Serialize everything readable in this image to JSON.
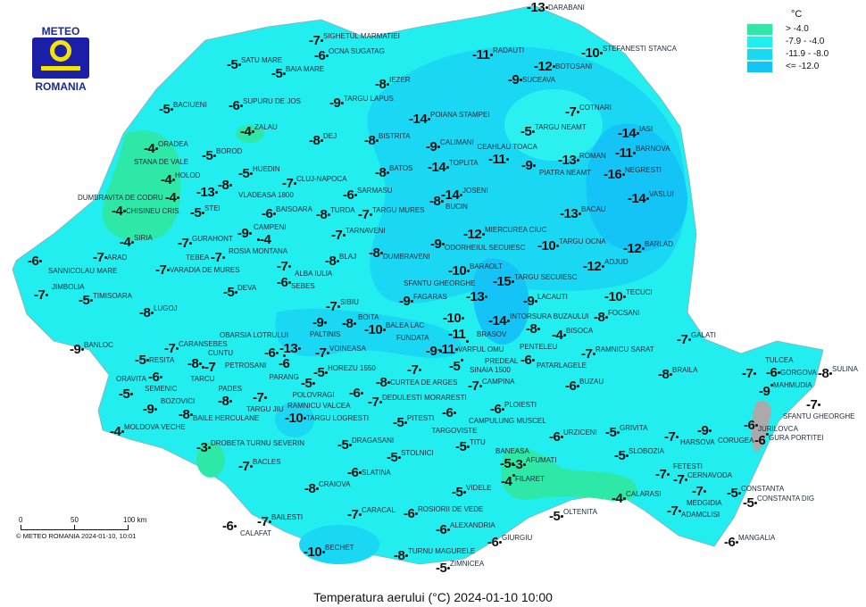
{
  "logo": {
    "line1": "METEO",
    "line2": "ROMANIA"
  },
  "legend": {
    "unit": "°C",
    "items": [
      {
        "label": "> -4.0",
        "color": "#2ee8a8"
      },
      {
        "label": "-7.9 - -4.0",
        "color": "#22eef0"
      },
      {
        "label": "-11.9 - -8.0",
        "color": "#1ad8f4"
      },
      {
        "label": "<= -12.0",
        "color": "#14c4f6"
      }
    ]
  },
  "scale": {
    "t0": "0",
    "t50": "50",
    "t100": "100 km",
    "copyright": "© METEO ROMANIA 2024-01-10, 10:01"
  },
  "title": "Temperatura aerului (°C) 2024-01-10 10:00",
  "stations": [
    {
      "name": "SIGHETUL MARMATIEI",
      "value": "-7"
    },
    {
      "name": "OCNA SUGATAG",
      "value": "-6"
    },
    {
      "name": "SATU MARE",
      "value": "-5"
    },
    {
      "name": "BAIA MARE",
      "value": "-5"
    },
    {
      "name": "SUPURU DE JOS",
      "value": "-6"
    },
    {
      "name": "BACIUENI",
      "value": "-5"
    },
    {
      "name": "TARGU LAPUS",
      "value": "-9"
    },
    {
      "name": "IEZER",
      "value": "-8"
    },
    {
      "name": "RADAUTI",
      "value": "-11"
    },
    {
      "name": "DARABANI",
      "value": "-13"
    },
    {
      "name": "STEFANESTI STANCA",
      "value": "-10"
    },
    {
      "name": "BOTOSANI",
      "value": "-12"
    },
    {
      "name": "SUCEAVA",
      "value": "-9"
    },
    {
      "name": "POIANA STAMPEI",
      "value": "-14"
    },
    {
      "name": "COTNARI",
      "value": "-7"
    },
    {
      "name": "TARGU NEAMT",
      "value": "-5"
    },
    {
      "name": "IASI",
      "value": "-14"
    },
    {
      "name": "ORADEA",
      "value": "-4"
    },
    {
      "name": "ZALAU",
      "value": "-4"
    },
    {
      "name": "DEJ",
      "value": "-8"
    },
    {
      "name": "BISTRITA",
      "value": "-8"
    },
    {
      "name": "CALIMANI",
      "value": "-9"
    },
    {
      "name": "BARNOVA",
      "value": "-11"
    },
    {
      "name": "BOROD",
      "value": "-5"
    },
    {
      "name": "VLADEASA 1800",
      "value": "-8"
    },
    {
      "name": "HUEDIN",
      "value": "-5"
    },
    {
      "name": "BATOS",
      "value": "-8"
    },
    {
      "name": "TOPLITA",
      "value": "-14"
    },
    {
      "name": "CEAHLAU TOACA",
      "value": "-11"
    },
    {
      "name": "PIATRA NEAMT",
      "value": "-9"
    },
    {
      "name": "ROMAN",
      "value": "-13"
    },
    {
      "name": "NEGRESTI",
      "value": "-16"
    },
    {
      "name": "HOLOD",
      "value": "-4"
    },
    {
      "name": "STANA DE VALE",
      "value": "-13"
    },
    {
      "name": "DUMBRAVITA DE CODRU",
      "value": "-4"
    },
    {
      "name": "CHISINEU CRIS",
      "value": "-4"
    },
    {
      "name": "STEI",
      "value": "-5"
    },
    {
      "name": "CLUJ-NAPOCA",
      "value": "-7"
    },
    {
      "name": "SARMASU",
      "value": "-6"
    },
    {
      "name": "BUCIN",
      "value": "-8"
    },
    {
      "name": "JOSENI",
      "value": "-14"
    },
    {
      "name": "VASLUI",
      "value": "-14"
    },
    {
      "name": "BAISOARA",
      "value": "-6"
    },
    {
      "name": "TURDA",
      "value": "-8"
    },
    {
      "name": "TARGU MURES",
      "value": "-7"
    },
    {
      "name": "BACAU",
      "value": "-13"
    },
    {
      "name": "SIRIA",
      "value": "-4"
    },
    {
      "name": "GURAHONT",
      "value": "-7"
    },
    {
      "name": "CAMPENI",
      "value": "-9"
    },
    {
      "name": "ROSIA MONTANA",
      "value": "-4"
    },
    {
      "name": "TARNAVENI",
      "value": "-7"
    },
    {
      "name": "ODORHEIUL SECUIESC",
      "value": "-9"
    },
    {
      "name": "MIERCUREA CIUC",
      "value": "-12"
    },
    {
      "name": "TARGU OCNA",
      "value": "-10"
    },
    {
      "name": "BARLAD",
      "value": "-12"
    },
    {
      "name": "SANNICOLAU MARE",
      "value": "-6"
    },
    {
      "name": "ARAD",
      "value": "-7"
    },
    {
      "name": "VARADIA DE MURES",
      "value": "-7"
    },
    {
      "name": "TEBEA",
      "value": "-7"
    },
    {
      "name": "ALBA IULIA",
      "value": "-7"
    },
    {
      "name": "BLAJ",
      "value": "-8"
    },
    {
      "name": "DUMBRAVENI",
      "value": "-8"
    },
    {
      "name": "SEBES",
      "value": "-6"
    },
    {
      "name": "BARAOLT",
      "value": "-10"
    },
    {
      "name": "TARGU SECUIESC",
      "value": "-15"
    },
    {
      "name": "ADJUD",
      "value": "-12"
    },
    {
      "name": "JIMBOLIA",
      "value": "-7"
    },
    {
      "name": "TIMISOARA",
      "value": "-5"
    },
    {
      "name": "DEVA",
      "value": "-5"
    },
    {
      "name": "FAGARAS",
      "value": "-9"
    },
    {
      "name": "SFANTU GHEORGHE",
      "value": "-13"
    },
    {
      "name": "LACAUTI",
      "value": "-9"
    },
    {
      "name": "TECUCI",
      "value": "-10"
    },
    {
      "name": "SIBIU",
      "value": "-7"
    },
    {
      "name": "LUGOJ",
      "value": "-8"
    },
    {
      "name": "PALTINIS",
      "value": "-9"
    },
    {
      "name": "BOITA",
      "value": "-8"
    },
    {
      "name": "BALEA LAC",
      "value": "-10"
    },
    {
      "name": "BRASOV",
      "value": "-10"
    },
    {
      "name": "INTORSURA BUZAULUI",
      "value": "-14"
    },
    {
      "name": "PENTELEU",
      "value": "-8"
    },
    {
      "name": "FOCSANI",
      "value": "-8"
    },
    {
      "name": "BISOCA",
      "value": "-4"
    },
    {
      "name": "GALATI",
      "value": "-7"
    },
    {
      "name": "BANLOC",
      "value": "-9"
    },
    {
      "name": "CARANSEBES",
      "value": "-7"
    },
    {
      "name": "OBARSIA LOTRULUI",
      "value": "-13"
    },
    {
      "name": "PETROSANI",
      "value": "-6"
    },
    {
      "name": "PARANG",
      "value": "-6"
    },
    {
      "name": "VOINEASA",
      "value": "-7"
    },
    {
      "name": "VARFUL OMU",
      "value": "-11"
    },
    {
      "name": "PREDEAL",
      "value": "-11"
    },
    {
      "name": "FUNDATA",
      "value": "-9"
    },
    {
      "name": "SINAIA 1500",
      "value": "-5"
    },
    {
      "name": "RESITA",
      "value": "-5"
    },
    {
      "name": "CUNTU",
      "value": "-8"
    },
    {
      "name": "TARCU",
      "value": "-7"
    },
    {
      "name": "SEMENIC",
      "value": "-6"
    },
    {
      "name": "HOREZU 1550",
      "value": "-5"
    },
    {
      "name": "POLOVRAGI",
      "value": "-5"
    },
    {
      "name": "RAMNICU VALCEA",
      "value": "-6"
    },
    {
      "name": "DEDULESTI MORARESTI",
      "value": "-7"
    },
    {
      "name": "CURTEA DE ARGES",
      "value": "-8"
    },
    {
      "name": "CAMPULUNG MUSCEL",
      "value": "-7"
    },
    {
      "name": "CAMPINA",
      "value": "-7"
    },
    {
      "name": "PATARLAGELE",
      "value": "-6"
    },
    {
      "name": "RAMNICU SARAT",
      "value": "-7"
    },
    {
      "name": "BRAILA",
      "value": "-8"
    },
    {
      "name": "TULCEA",
      "value": "-7"
    },
    {
      "name": "GORGOVA",
      "value": "-6"
    },
    {
      "name": "SULINA",
      "value": "-8"
    },
    {
      "name": "MAHMUDIA",
      "value": "-9"
    },
    {
      "name": "ORAVITA",
      "value": "-5"
    },
    {
      "name": "TARGU JIU",
      "value": "-7"
    },
    {
      "name": "BUZAU",
      "value": "-6"
    },
    {
      "name": "BOZOVICI",
      "value": "-9"
    },
    {
      "name": "BAILE HERCULANE",
      "value": "-8"
    },
    {
      "name": "PADES",
      "value": "-8"
    },
    {
      "name": "TARGU LOGRESTI",
      "value": "-10"
    },
    {
      "name": "TARGOVISTE",
      "value": "-6"
    },
    {
      "name": "PLOIESTI",
      "value": "-6"
    },
    {
      "name": "PITESTI",
      "value": "-5"
    },
    {
      "name": "SFANTU GHEORGHE",
      "value": "-7"
    },
    {
      "name": "MOLDOVA VECHE",
      "value": "-4"
    },
    {
      "name": "DROBETA TURNU SEVERIN",
      "value": "-3"
    },
    {
      "name": "DRAGASANI",
      "value": "-5"
    },
    {
      "name": "TITU",
      "value": "-5"
    },
    {
      "name": "URZICENI",
      "value": "-6"
    },
    {
      "name": "GRIVITA",
      "value": "-5"
    },
    {
      "name": "HARSOVA",
      "value": "-7"
    },
    {
      "name": "CORUGEA",
      "value": "-9"
    },
    {
      "name": "JURILOVCA",
      "value": "-6"
    },
    {
      "name": "GURA PORTITEI",
      "value": "-6"
    },
    {
      "name": "BACLES",
      "value": "-7"
    },
    {
      "name": "STOLNICI",
      "value": "-5"
    },
    {
      "name": "SLOBOZIA",
      "value": "-5"
    },
    {
      "name": "BANEASA",
      "value": "-5"
    },
    {
      "name": "AFUMATI",
      "value": "-3"
    },
    {
      "name": "FILARET",
      "value": "-4"
    },
    {
      "name": "SLATINA",
      "value": "-6"
    },
    {
      "name": "CRAIOVA",
      "value": "-8"
    },
    {
      "name": "VIDELE",
      "value": "-5"
    },
    {
      "name": "FETESTI",
      "value": "-7"
    },
    {
      "name": "CERNAVODA",
      "value": "-7"
    },
    {
      "name": "CALARASI",
      "value": "-4"
    },
    {
      "name": "MEDGIDIA",
      "value": "-7"
    },
    {
      "name": "CONSTANTA",
      "value": "-5"
    },
    {
      "name": "CONSTANTA DIG",
      "value": "-5"
    },
    {
      "name": "CARACAL",
      "value": "-7"
    },
    {
      "name": "ROSIORII DE VEDE",
      "value": "-6"
    },
    {
      "name": "ALEXANDRIA",
      "value": "-6"
    },
    {
      "name": "OLTENITA",
      "value": "-5"
    },
    {
      "name": "CALAFAT",
      "value": "-6"
    },
    {
      "name": "BAILESTI",
      "value": "-7"
    },
    {
      "name": "ADAMCLISI",
      "value": "-7"
    },
    {
      "name": "GIURGIU",
      "value": "-6"
    },
    {
      "name": "MANGALIA",
      "value": "-6"
    },
    {
      "name": "BECHET",
      "value": "-10"
    },
    {
      "name": "TURNU MAGURELE",
      "value": "-8"
    },
    {
      "name": "ZIMNICEA",
      "value": "-5"
    }
  ]
}
